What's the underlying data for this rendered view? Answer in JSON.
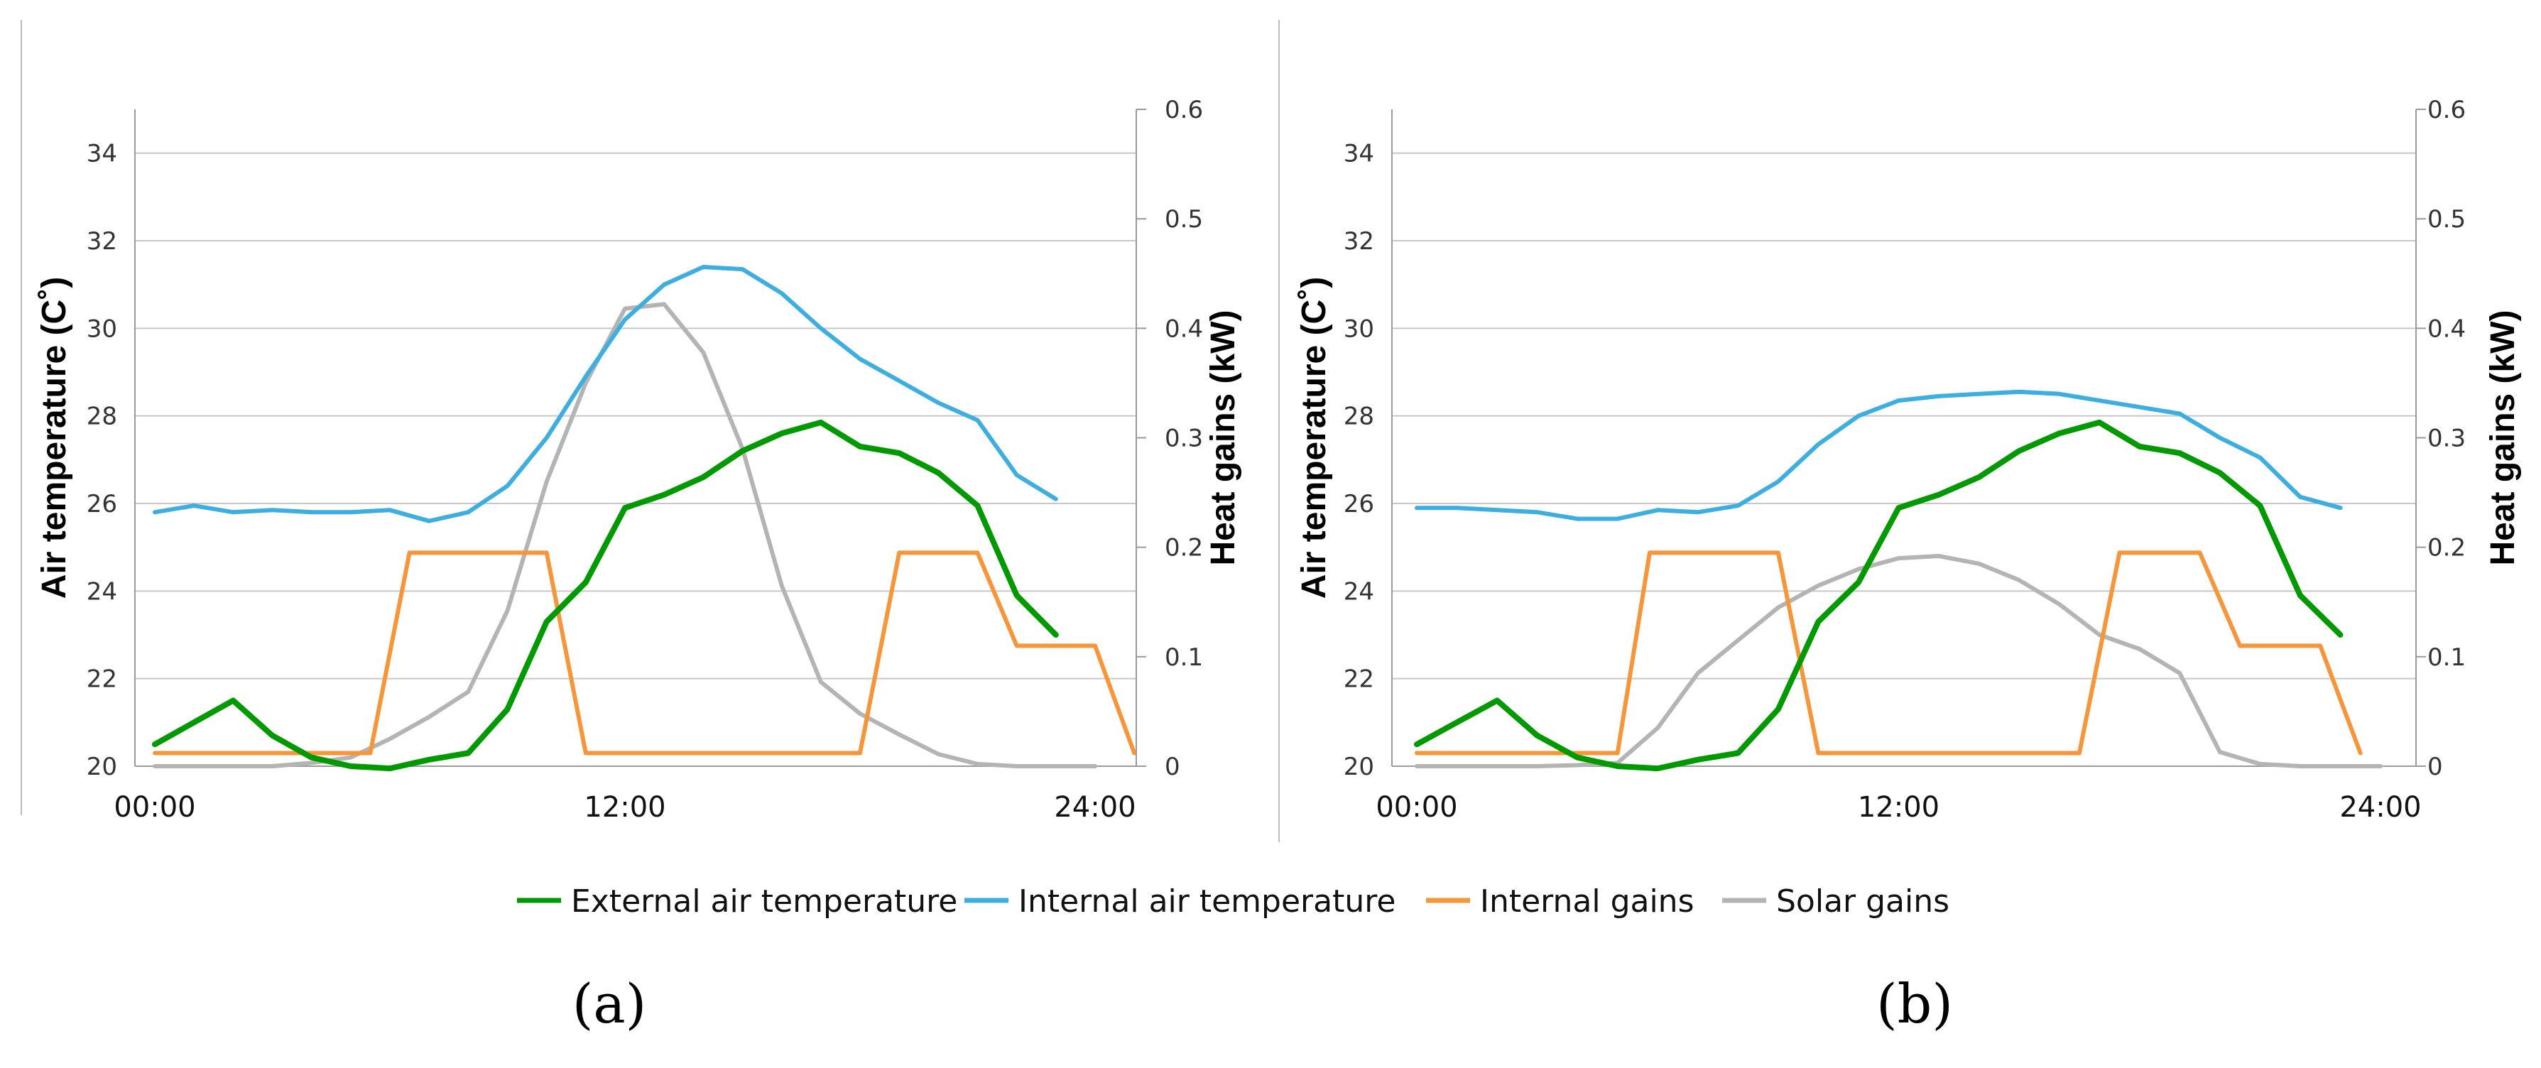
{
  "colors": {
    "external": "#009900",
    "internal_temp": "#3daee0",
    "internal_gains": "#f7953a",
    "solar": "#b4b4b4"
  },
  "legend": [
    {
      "key": "external",
      "label": "External air temperature"
    },
    {
      "key": "internal_temp",
      "label": "Internal air temperature"
    },
    {
      "key": "internal_gains",
      "label": "Internal gains"
    },
    {
      "key": "solar",
      "label": "Solar gains"
    }
  ],
  "chart_data": [
    {
      "panel_label": "(a)",
      "type": "line",
      "ylabel_left": "Air temperature (C˚)",
      "ylabel_right": "Heat gains (kW)",
      "xlim": [
        0,
        24
      ],
      "ylim_left": [
        20,
        35
      ],
      "ylim_right": [
        0,
        0.6
      ],
      "x_ticks": [
        {
          "v": 0,
          "label": "00:00"
        },
        {
          "v": 12,
          "label": "12:00"
        },
        {
          "v": 24,
          "label": "24:00"
        }
      ],
      "yticks_left": [
        "20",
        "22",
        "24",
        "26",
        "28",
        "30",
        "32",
        "34"
      ],
      "yticks_right": [
        "0",
        "0.1",
        "0.2",
        "0.3",
        "0.4",
        "0.5",
        "0.6"
      ],
      "x": [
        0,
        1,
        2,
        3,
        4,
        5,
        6,
        7,
        8,
        9,
        10,
        11,
        12,
        13,
        14,
        15,
        16,
        17,
        18,
        19,
        20,
        21,
        22,
        23,
        24
      ],
      "series": [
        {
          "key": "external",
          "name": "External air temperature",
          "axis": "left",
          "values": [
            20.5,
            21.0,
            21.5,
            20.7,
            20.2,
            20.0,
            19.95,
            20.15,
            20.3,
            21.3,
            23.3,
            24.2,
            25.9,
            26.2,
            26.6,
            27.2,
            27.6,
            27.85,
            27.3,
            27.15,
            26.7,
            25.95,
            23.9,
            23.0,
            null
          ]
        },
        {
          "key": "internal_temp",
          "name": "Internal air temperature",
          "axis": "left",
          "values": [
            25.8,
            25.95,
            25.8,
            25.85,
            25.8,
            25.8,
            25.85,
            25.6,
            25.8,
            26.4,
            27.5,
            28.9,
            30.2,
            31.0,
            31.4,
            31.35,
            30.8,
            30.0,
            29.3,
            28.8,
            28.3,
            27.9,
            26.65,
            26.1,
            null
          ]
        },
        {
          "key": "internal_gains",
          "name": "Internal gains",
          "axis": "right",
          "points": [
            [
              0,
              0.012
            ],
            [
              5.5,
              0.012
            ],
            [
              6.5,
              0.195
            ],
            [
              10,
              0.195
            ],
            [
              11,
              0.012
            ],
            [
              18,
              0.012
            ],
            [
              19,
              0.195
            ],
            [
              21,
              0.195
            ],
            [
              22,
              0.11
            ],
            [
              24,
              0.11
            ],
            [
              25,
              0.012
            ]
          ]
        },
        {
          "key": "solar",
          "name": "Solar gains",
          "axis": "right",
          "values": [
            0,
            0,
            0,
            0,
            0.003,
            0.008,
            0.025,
            0.045,
            0.068,
            0.142,
            0.26,
            0.35,
            0.418,
            0.422,
            0.378,
            0.29,
            0.165,
            0.077,
            0.048,
            0.029,
            0.011,
            0.002,
            0,
            0,
            0
          ]
        }
      ]
    },
    {
      "panel_label": "(b)",
      "type": "line",
      "ylabel_left": "Air temperature (C˚)",
      "ylabel_right": "Heat gains (kW)",
      "xlim": [
        0,
        24
      ],
      "ylim_left": [
        20,
        35
      ],
      "ylim_right": [
        0,
        0.6
      ],
      "x_ticks": [
        {
          "v": 0,
          "label": "00:00"
        },
        {
          "v": 12,
          "label": "12:00"
        },
        {
          "v": 24,
          "label": "24:00"
        }
      ],
      "yticks_left": [
        "20",
        "22",
        "24",
        "26",
        "28",
        "30",
        "32",
        "34"
      ],
      "yticks_right": [
        "0",
        "0.1",
        "0.2",
        "0.3",
        "0.4",
        "0.5",
        "0.6"
      ],
      "x": [
        0,
        1,
        2,
        3,
        4,
        5,
        6,
        7,
        8,
        9,
        10,
        11,
        12,
        13,
        14,
        15,
        16,
        17,
        18,
        19,
        20,
        21,
        22,
        23,
        24
      ],
      "series": [
        {
          "key": "external",
          "name": "External air temperature",
          "axis": "left",
          "values": [
            20.5,
            21.0,
            21.5,
            20.7,
            20.2,
            20.0,
            19.95,
            20.15,
            20.3,
            21.3,
            23.3,
            24.2,
            25.9,
            26.2,
            26.6,
            27.2,
            27.6,
            27.85,
            27.3,
            27.15,
            26.7,
            25.95,
            23.9,
            23.0,
            null
          ]
        },
        {
          "key": "internal_temp",
          "name": "Internal air temperature",
          "axis": "left",
          "values": [
            25.9,
            25.9,
            25.85,
            25.8,
            25.65,
            25.65,
            25.85,
            25.8,
            25.95,
            26.5,
            27.35,
            28.0,
            28.35,
            28.45,
            28.5,
            28.55,
            28.5,
            28.35,
            28.2,
            28.05,
            27.5,
            27.05,
            26.15,
            25.9,
            null
          ]
        },
        {
          "key": "internal_gains",
          "name": "Internal gains",
          "axis": "right",
          "points": [
            [
              0,
              0.012
            ],
            [
              5,
              0.012
            ],
            [
              5.8,
              0.195
            ],
            [
              9,
              0.195
            ],
            [
              10,
              0.012
            ],
            [
              16.5,
              0.012
            ],
            [
              17.5,
              0.195
            ],
            [
              19.5,
              0.195
            ],
            [
              20.5,
              0.11
            ],
            [
              22.5,
              0.11
            ],
            [
              23.5,
              0.012
            ]
          ]
        },
        {
          "key": "solar",
          "name": "Solar gains",
          "axis": "right",
          "values": [
            0,
            0,
            0,
            0,
            0.001,
            0.003,
            0.035,
            0.085,
            0.115,
            0.145,
            0.165,
            0.18,
            0.19,
            0.192,
            0.185,
            0.17,
            0.148,
            0.12,
            0.107,
            0.085,
            0.013,
            0.002,
            0,
            0,
            0
          ]
        }
      ]
    }
  ]
}
